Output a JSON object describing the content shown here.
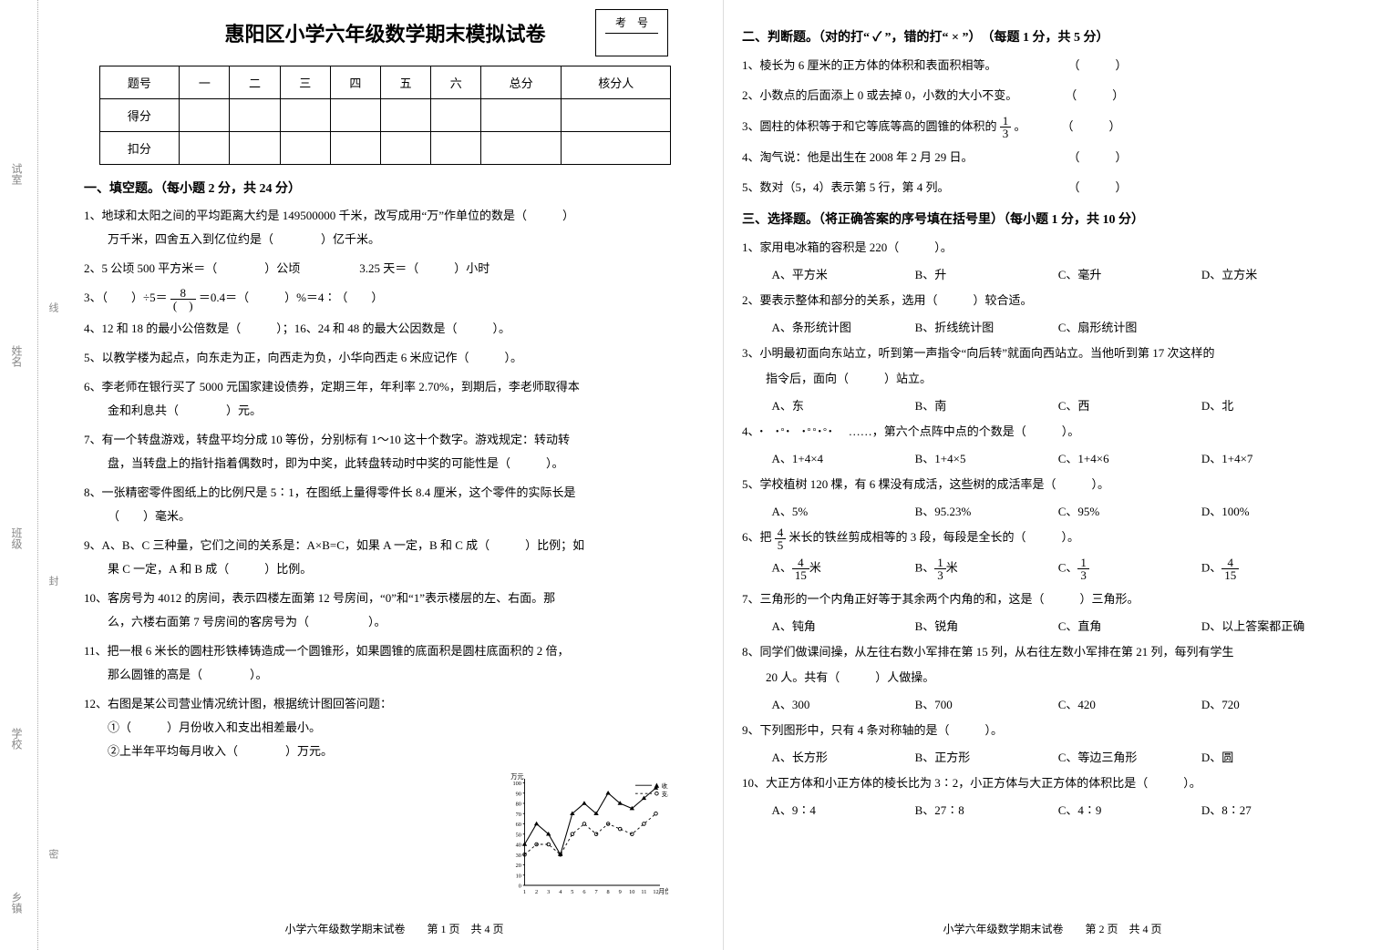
{
  "binding": {
    "labels": [
      "乡镇",
      "学校",
      "班级",
      "姓名",
      "试室"
    ],
    "fold": [
      "密",
      "封",
      "线"
    ]
  },
  "title": "惠阳区小学六年级数学期末模拟试卷",
  "exam_box": {
    "top": "考　号",
    "bottom": ""
  },
  "score_table": {
    "headers": [
      "题号",
      "一",
      "二",
      "三",
      "四",
      "五",
      "六",
      "总分",
      "核分人"
    ],
    "rows": [
      "得分",
      "扣分"
    ]
  },
  "sect1": {
    "head": "一、填空题。（每小题 2 分，共 24 分）",
    "q1a": "1、地球和太阳之间的平均距离大约是 149500000 千米，改写成用“万”作单位的数是（　　　）",
    "q1b": "万千米，四舍五入到亿位约是（　　　　）亿千米。",
    "q2": "2、5 公顷 500 平方米＝（　　　　）公顷　　　　　3.25 天＝（　　　）小时",
    "q3a": "3、（　　）÷5＝",
    "q3b": "＝0.4＝（　　　）%＝4∶（　　）",
    "q4": "4、12 和 18 的最小公倍数是（　　　）；16、24 和 48 的最大公因数是（　　　）。",
    "q5": "5、以教学楼为起点，向东走为正，向西走为负，小华向西走 6 米应记作（　　　）。",
    "q6a": "6、李老师在银行买了 5000 元国家建设债券，定期三年，年利率 2.70%，到期后，李老师取得本",
    "q6b": "金和利息共（　　　　）元。",
    "q7a": "7、有一个转盘游戏，转盘平均分成 10 等份，分别标有 1～10 这十个数字。游戏规定：转动转",
    "q7b": "盘，当转盘上的指针指着偶数时，即为中奖，此转盘转动时中奖的可能性是（　　　）。",
    "q8a": "8、一张精密零件图纸上的比例尺是 5∶1，在图纸上量得零件长 8.4 厘米，这个零件的实际长是",
    "q8b": "（　　）毫米。",
    "q9a": "9、A、B、C 三种量，它们之间的关系是：A×B=C，如果 A 一定，B 和 C 成（　　　）比例；如",
    "q9b": "果 C 一定，A 和 B 成（　　　）比例。",
    "q10a": "10、客房号为 4012 的房间，表示四楼左面第 12 号房间，“0”和“1”表示楼层的左、右面。那",
    "q10b": "么，六楼右面第 7 号房间的客房号为（　　　　　）。",
    "q11a": "11、把一根 6 米长的圆柱形铁棒铸造成一个圆锥形，如果圆锥的底面积是圆柱底面积的 2 倍，",
    "q11b": "那么圆锥的高是（　　　　）。",
    "q12a": "12、右图是某公司营业情况统计图，根据统计图回答问题：",
    "q12b": "①（　　　）月份收入和支出相差最小。",
    "q12c": "②上半年平均每月收入（　　　　）万元。"
  },
  "chart": {
    "legend": [
      "收入",
      "支出"
    ],
    "y_unit": "万元",
    "x_unit": "月份",
    "y_ticks": [
      "0",
      "10",
      "20",
      "30",
      "40",
      "50",
      "60",
      "70",
      "80",
      "90",
      "100"
    ],
    "x_ticks": [
      "1",
      "2",
      "3",
      "4",
      "5",
      "6",
      "7",
      "8",
      "9",
      "10",
      "11",
      "12"
    ],
    "income": [
      40,
      60,
      50,
      30,
      70,
      80,
      70,
      90,
      80,
      75,
      85,
      95
    ],
    "expense": [
      30,
      40,
      40,
      30,
      50,
      60,
      50,
      60,
      55,
      50,
      60,
      70
    ],
    "income_color": "#000",
    "expense_color": "#000"
  },
  "footer1": "小学六年级数学期末试卷　　第 1 页　共 4 页",
  "sect2": {
    "head": "二、判断题。（对的打“ ✓ ”，错的打“ × ”）　（每题 1 分，共 5 分）",
    "q1": "1、棱长为 6 厘米的正方体的体积和表面积相等。　　　　　　　（　　　）",
    "q2": "2、小数点的后面添上 0 或去掉 0，小数的大小不变。　　　　　（　　　）",
    "q3a": "3、圆柱的体积等于和它等底等高的圆锥的体积的",
    "q3b": "。　　　　（　　　）",
    "q4": "4、淘气说：他是出生在 2008 年 2 月 29 日。　　　　　　　　　（　　　）",
    "q5": "5、数对（5，4）表示第 5 行，第 4 列。　　　　　　　　　　　（　　　）"
  },
  "sect3": {
    "head": "三、选择题。（将正确答案的序号填在括号里）（每小题 1 分，共 10 分）",
    "q1": "1、家用电冰箱的容积是 220（　　　）。",
    "q1o": [
      "A、平方米",
      "B、升",
      "C、毫升",
      "D、立方米"
    ],
    "q2": "2、要表示整体和部分的关系，选用（　　　）较合适。",
    "q2o": [
      "A、条形统计图",
      "B、折线统计图",
      "C、扇形统计图",
      ""
    ],
    "q3a": "3、小明最初面向东站立，听到第一声指令“向后转”就面向西站立。当他听到第 17 次这样的",
    "q3b": "指令后，面向（　　　）站立。",
    "q3o": [
      "A、东",
      "B、南",
      "C、西",
      "D、北"
    ],
    "q4": "……，第六个点阵中点的个数是（　　　）。",
    "q4o": [
      "A、1+4×4",
      "B、1+4×5",
      "C、1+4×6",
      "D、1+4×7"
    ],
    "q5": "5、学校植树 120 棵，有 6 棵没有成活，这些树的成活率是（　　　）。",
    "q5o": [
      "A、5%",
      "B、95.23%",
      "C、95%",
      "D、100%"
    ],
    "q6a": "6、把",
    "q6b": "米长的铁丝剪成相等的 3 段，每段是全长的（　　　）。",
    "q7": "7、三角形的一个内角正好等于其余两个内角的和，这是（　　　）三角形。",
    "q7o": [
      "A、钝角",
      "B、锐角",
      "C、直角",
      "D、以上答案都正确"
    ],
    "q8a": "8、同学们做课间操，从左往右数小军排在第 15 列，从右往左数小军排在第 21 列，每列有学生",
    "q8b": "20 人。共有（　　　）人做操。",
    "q8o": [
      "A、300",
      "B、700",
      "C、420",
      "D、720"
    ],
    "q9": "9、下列图形中，只有 4 条对称轴的是（　　　）。",
    "q9o": [
      "A、长方形",
      "B、正方形",
      "C、等边三角形",
      "D、圆"
    ],
    "q10": "10、大正方体和小正方体的棱长比为 3∶2，小正方体与大正方体的体积比是（　　　）。",
    "q10o": [
      "A、9∶4",
      "B、27∶8",
      "C、4∶9",
      "D、8∶27"
    ]
  },
  "footer2": "小学六年级数学期末试卷　　第 2 页　共 4 页"
}
